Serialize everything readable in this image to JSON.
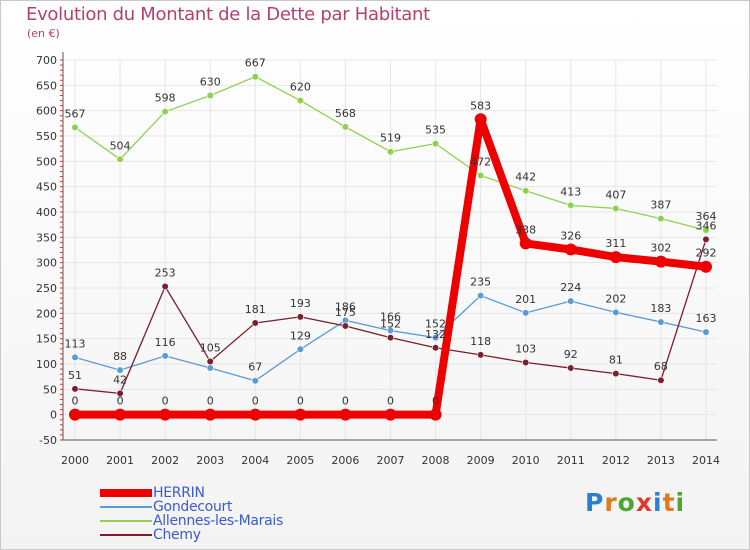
{
  "header": {
    "title": "Evolution du Montant de la Dette par Habitant",
    "unit": "(en €)"
  },
  "logo": {
    "text": "Proxiti",
    "colors": [
      "#2a7fd4",
      "#e07a1f",
      "#4aa832",
      "#e03a2f",
      "#2a7fd4",
      "#e07a1f",
      "#4aa832"
    ]
  },
  "colors": {
    "title": "#b5406f",
    "grid": "#e6e6e6",
    "axis": "#555555",
    "legend_text": "#3b5bcf"
  },
  "chart_data": {
    "type": "line",
    "title": "Evolution du Montant de la Dette par Habitant",
    "ylabel": "(en €)",
    "xlabel": "",
    "categories": [
      "2000",
      "2001",
      "2002",
      "2003",
      "2004",
      "2005",
      "2006",
      "2007",
      "2008",
      "2009",
      "2010",
      "2011",
      "2012",
      "2013",
      "2014"
    ],
    "ylim": [
      -50,
      700
    ],
    "yticks": [
      -50,
      0,
      50,
      100,
      150,
      200,
      250,
      300,
      350,
      400,
      450,
      500,
      550,
      600,
      650,
      700
    ],
    "grid": true,
    "legend_position": "bottom-left",
    "series": [
      {
        "name": "HERRIN",
        "color": "#ee0000",
        "thick": true,
        "values": [
          0,
          0,
          0,
          0,
          0,
          0,
          0,
          0,
          0,
          583,
          338,
          326,
          311,
          302,
          292
        ],
        "labels": [
          "0",
          "0",
          "0",
          "0",
          "0",
          "0",
          "0",
          "0",
          "0",
          "583",
          "338",
          "326",
          "311",
          "302",
          "292"
        ]
      },
      {
        "name": "Gondecourt",
        "color": "#5b9bd5",
        "thick": false,
        "values": [
          113,
          88,
          116,
          92,
          67,
          129,
          186,
          166,
          152,
          235,
          201,
          224,
          202,
          183,
          163
        ],
        "labels": [
          "113",
          "88",
          "116",
          "",
          "67",
          "129",
          "186",
          "166",
          "152",
          "235",
          "201",
          "224",
          "202",
          "183",
          "163"
        ]
      },
      {
        "name": "Allennes-les-Marais",
        "color": "#8fd14f",
        "thick": false,
        "values": [
          567,
          504,
          598,
          630,
          667,
          620,
          568,
          519,
          535,
          472,
          442,
          413,
          407,
          387,
          364
        ],
        "labels": [
          "567",
          "504",
          "598",
          "630",
          "667",
          "620",
          "568",
          "519",
          "535",
          "472",
          "442",
          "413",
          "407",
          "387",
          "364"
        ]
      },
      {
        "name": "Chemy",
        "color": "#7a1f2b",
        "thick": false,
        "values": [
          51,
          42,
          253,
          105,
          181,
          193,
          175,
          152,
          132,
          118,
          103,
          92,
          81,
          68,
          346
        ],
        "labels": [
          "51",
          "42",
          "253",
          "105",
          "181",
          "193",
          "175",
          "152",
          "132",
          "118",
          "103",
          "92",
          "81",
          "68",
          "346"
        ]
      }
    ]
  }
}
